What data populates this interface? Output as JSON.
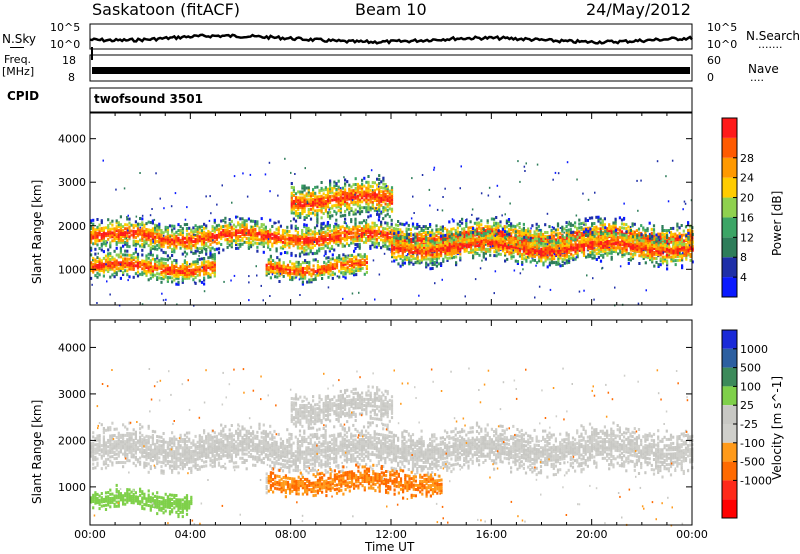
{
  "header": {
    "station": "Saskatoon (fitACF)",
    "beam": "Beam 10",
    "date": "24/May/2012"
  },
  "strips": {
    "nsky_label": "N.Sky",
    "nsky_ticks": [
      "10^5",
      "10^0"
    ],
    "nsearch_label": "N.Search",
    "nsearch_dots": "·······",
    "nsearch_ticks": [
      "10^5",
      "10^0"
    ],
    "freq_label": "Freq.",
    "freq_unit": "[MHz]",
    "freq_ticks": [
      "18",
      "8"
    ],
    "nave_label": "Nave",
    "nave_dots": "····",
    "nave_ticks": [
      "60",
      "0"
    ],
    "cpid_label": "CPID",
    "cpid_value": "twofsound 3501"
  },
  "colors": {
    "power": [
      "#0a1aff",
      "#1e2fa8",
      "#2e7d5a",
      "#3ca566",
      "#8fd14f",
      "#ffcc00",
      "#ff9900",
      "#ff5a00",
      "#ff1a1a"
    ],
    "velocity": [
      "#1a2ad8",
      "#2c5fa0",
      "#3c8a5a",
      "#7fd04a",
      "#c8c8c4",
      "#cfcfcb",
      "#ff9a1a",
      "#ff6a00",
      "#ff2a1a",
      "#ff0000"
    ]
  },
  "chart_data": [
    {
      "type": "heatmap",
      "title": "Power",
      "ylabel": "Slant Range [km]",
      "xlabel": "Time UT",
      "x_ticks": [
        "00:00",
        "04:00",
        "08:00",
        "12:00",
        "16:00",
        "20:00",
        "00:00"
      ],
      "xlim_hours": [
        0,
        24
      ],
      "ylim": [
        180,
        4590
      ],
      "y_ticks": [
        1000,
        2000,
        3000,
        4000
      ],
      "colorbar": {
        "label": "Power [dB]",
        "ticks": [
          4,
          8,
          12,
          16,
          20,
          24,
          28
        ]
      },
      "echo_bands": [
        {
          "start_hour": 0,
          "end_hour": 24,
          "range_km": 1750,
          "width_km": 400
        },
        {
          "start_hour": 0,
          "end_hour": 5,
          "range_km": 1050,
          "width_km": 350
        },
        {
          "start_hour": 7,
          "end_hour": 11,
          "range_km": 1050,
          "width_km": 300
        },
        {
          "start_hour": 8,
          "end_hour": 12,
          "range_km": 2600,
          "width_km": 500
        },
        {
          "start_hour": 12,
          "end_hour": 24,
          "range_km": 1500,
          "width_km": 400
        }
      ]
    },
    {
      "type": "heatmap",
      "title": "Velocity",
      "ylabel": "Slant Range [km]",
      "xlabel": "Time UT",
      "x_ticks": [
        "00:00",
        "04:00",
        "08:00",
        "12:00",
        "16:00",
        "20:00",
        "00:00"
      ],
      "xlim_hours": [
        0,
        24
      ],
      "ylim": [
        180,
        4590
      ],
      "y_ticks": [
        1000,
        2000,
        3000,
        4000
      ],
      "colorbar": {
        "label": "Velocity [m s^-1]",
        "ticks": [
          1000,
          500,
          100,
          25,
          -25,
          -100,
          -500,
          -1000
        ]
      },
      "echo_bands": [
        {
          "start_hour": 0,
          "end_hour": 24,
          "range_km": 1800,
          "width_km": 500
        },
        {
          "start_hour": 0,
          "end_hour": 4,
          "range_km": 700,
          "width_km": 250
        },
        {
          "start_hour": 7,
          "end_hour": 14,
          "range_km": 1100,
          "width_km": 300
        },
        {
          "start_hour": 8,
          "end_hour": 12,
          "range_km": 2700,
          "width_km": 400
        }
      ]
    }
  ]
}
